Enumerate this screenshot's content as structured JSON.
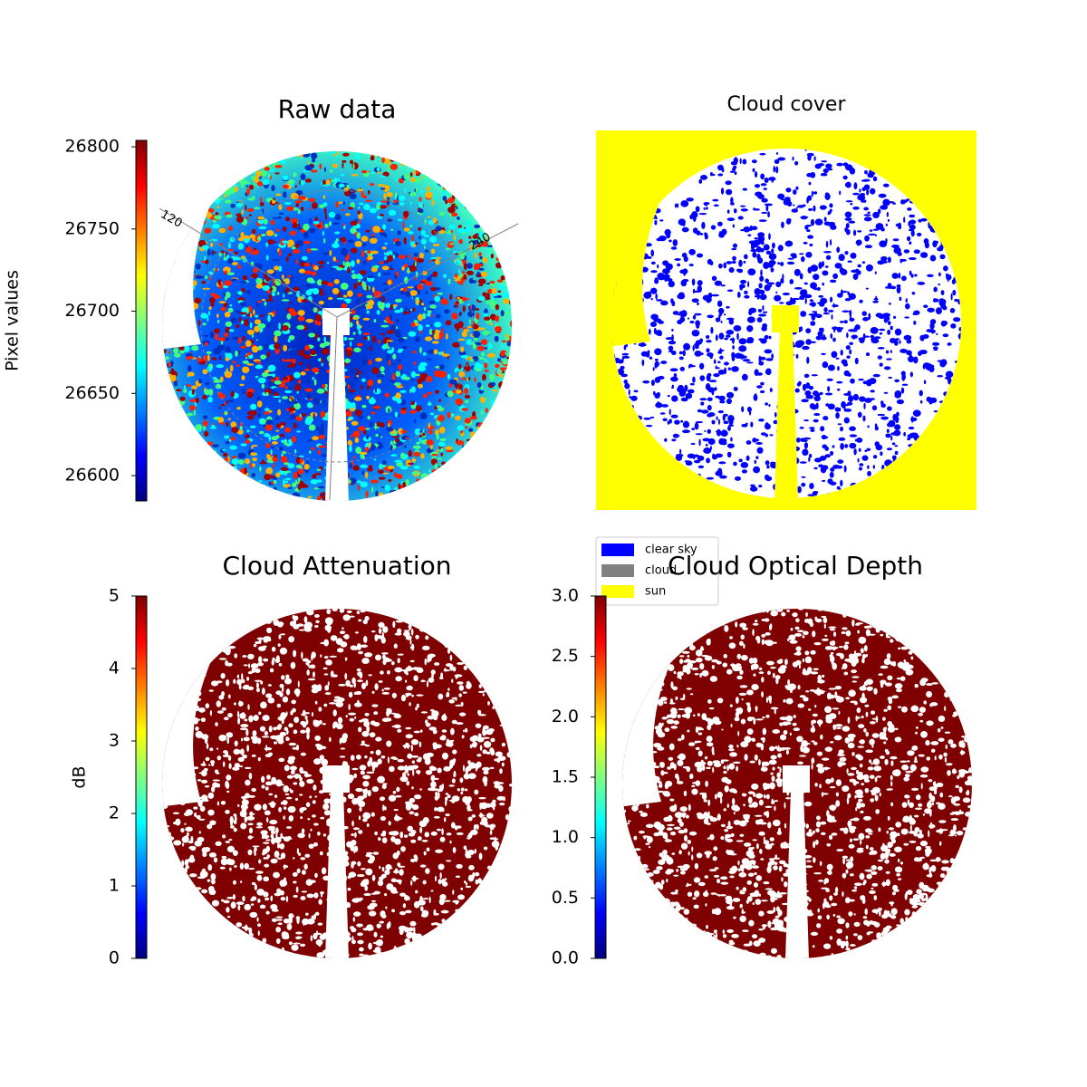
{
  "chart_data": [
    {
      "type": "image",
      "title": "Raw data",
      "colorbar_label": "Pixel values",
      "ylim": [
        26584.6,
        26803.9
      ],
      "yticks": [
        26600,
        26650,
        26700,
        26750,
        26800
      ],
      "colormap": [
        "#00007f",
        "#0000ff",
        "#007fff",
        "#00ffff",
        "#7fff7f",
        "#ffff00",
        "#ff7f00",
        "#ff0000",
        "#7f0000"
      ],
      "polar_labels": [
        "120",
        "240"
      ]
    },
    {
      "type": "categorical-image",
      "title": "Cloud cover",
      "legend": "lower left",
      "series": [
        {
          "name": "clear sky",
          "color": "#0000ff"
        },
        {
          "name": "cloud",
          "color": "#808080"
        },
        {
          "name": "sun",
          "color": "#ffff00"
        }
      ]
    },
    {
      "type": "image",
      "title": "Cloud Attenuation",
      "colorbar_label": "dB",
      "ylim": [
        0,
        5
      ],
      "yticks": [
        0,
        1,
        2,
        3,
        4,
        5
      ],
      "colormap": [
        "#00007f",
        "#0000ff",
        "#007fff",
        "#00ffff",
        "#7fff7f",
        "#ffff00",
        "#ff7f00",
        "#ff0000",
        "#7f0000"
      ]
    },
    {
      "type": "image",
      "title": "Cloud Optical Depth",
      "ylim": [
        0,
        3
      ],
      "yticks": [
        {
          "value": 0,
          "label": "0.0"
        },
        0.5,
        {
          "value": 1,
          "label": "1.0"
        },
        1.5,
        {
          "value": 2,
          "label": "2.0"
        },
        2.5,
        {
          "value": 3,
          "label": "3.0"
        }
      ],
      "colormap": [
        "#00007f",
        "#0000ff",
        "#007fff",
        "#00ffff",
        "#7fff7f",
        "#ffff00",
        "#ff7f00",
        "#ff0000",
        "#7f0000"
      ]
    }
  ]
}
